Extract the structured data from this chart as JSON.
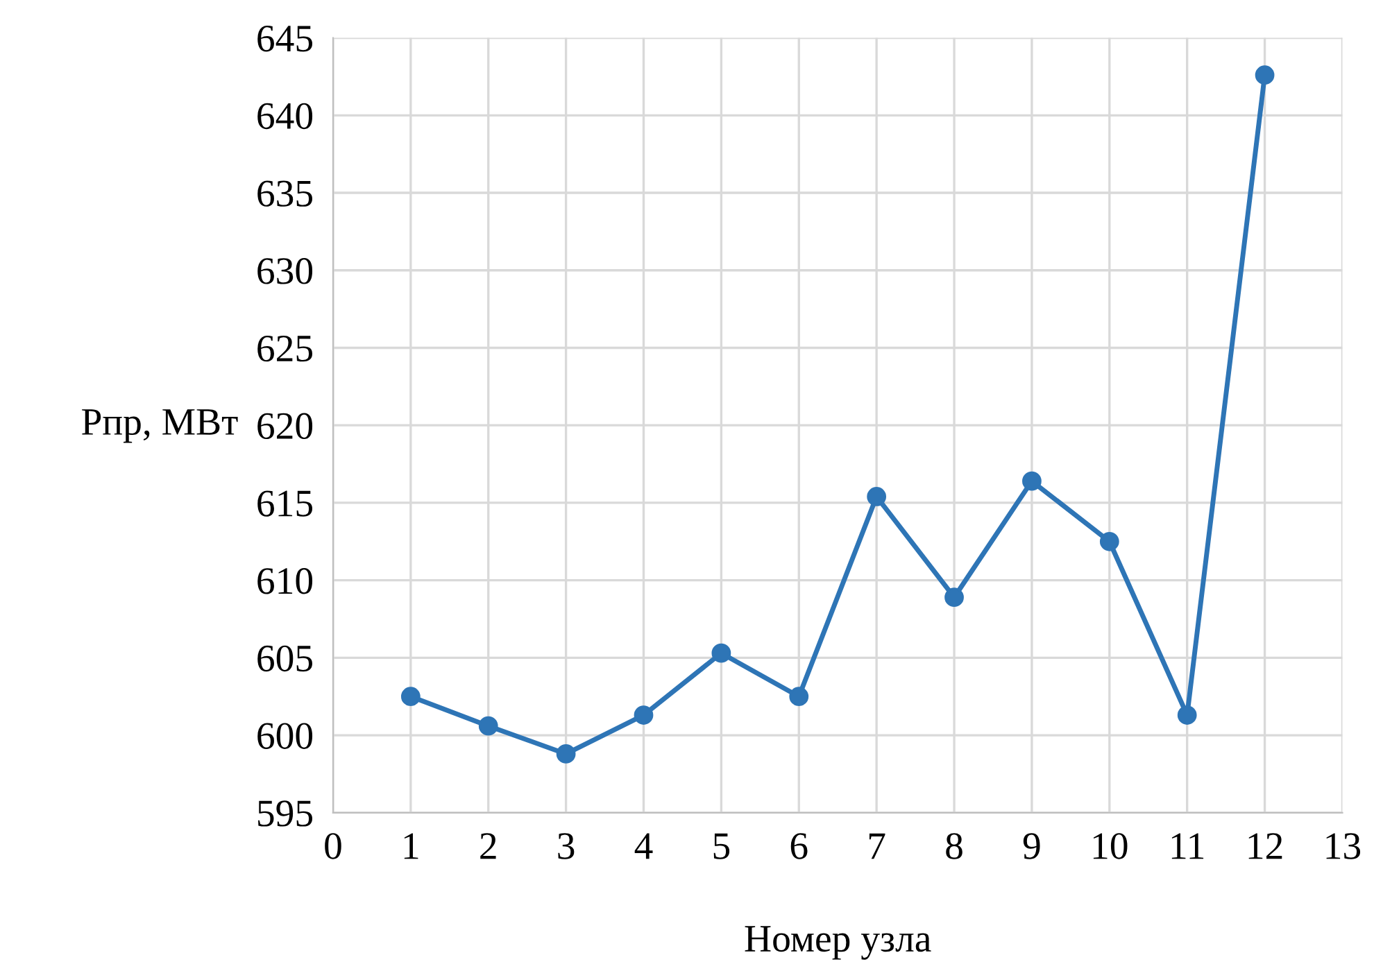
{
  "chart_data": {
    "type": "line",
    "xlabel": "Номер узла",
    "ylabel": "Pпр, МВт",
    "x": [
      1,
      2,
      3,
      4,
      5,
      6,
      7,
      8,
      9,
      10,
      11,
      12
    ],
    "series": [
      {
        "color": "#2e75b6",
        "values": [
          602.5,
          600.6,
          598.8,
          601.3,
          605.3,
          602.5,
          615.4,
          608.9,
          616.4,
          612.5,
          601.3,
          642.6
        ]
      }
    ],
    "xlim": [
      0,
      13
    ],
    "xticks": [
      0,
      1,
      2,
      3,
      4,
      5,
      6,
      7,
      8,
      9,
      10,
      11,
      12,
      13
    ],
    "ylim": [
      595,
      645
    ],
    "yticks": [
      595,
      600,
      605,
      610,
      615,
      620,
      625,
      630,
      635,
      640,
      645
    ],
    "grid": true,
    "marker": "circle",
    "line_style": "solid",
    "legend": false
  }
}
